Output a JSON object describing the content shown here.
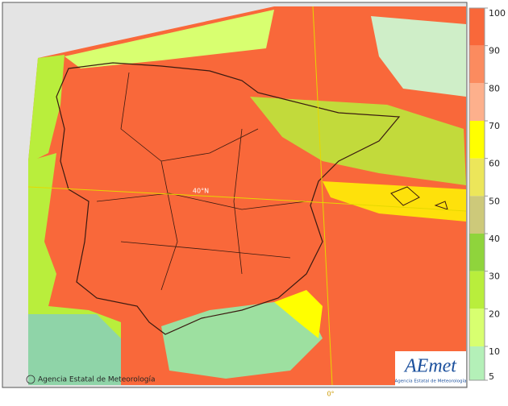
{
  "legend": {
    "ticks": [
      100,
      90,
      80,
      70,
      60,
      50,
      40,
      30,
      20,
      10,
      5
    ],
    "colors": [
      "#f9683a",
      "#fb8b5f",
      "#fdb08c",
      "#ffff00",
      "#ece65a",
      "#cdc97a",
      "#8fd43c",
      "#b9ee3c",
      "#d8ff70",
      "#b4f0b8"
    ]
  },
  "map": {
    "parallel_label": "40°N",
    "meridian_label": "0°",
    "copyright": "Agencia Estatal de Meteorología"
  },
  "logo": {
    "name": "AEmet",
    "subtitle": "Agencia Estatal de Meteorología"
  }
}
